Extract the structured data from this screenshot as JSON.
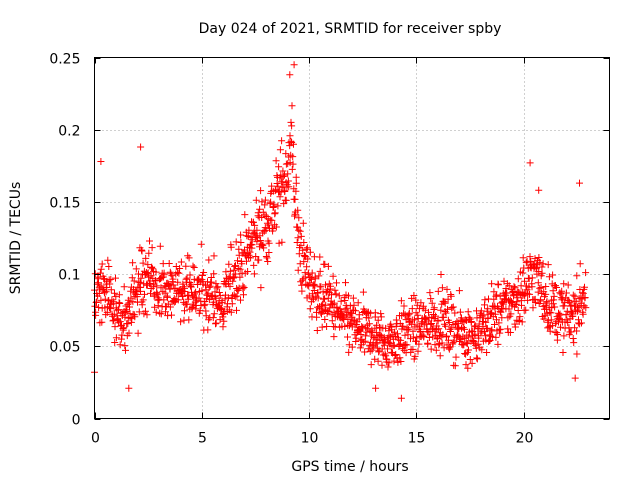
{
  "chart_data": {
    "type": "scatter",
    "title": "Day 024 of 2021, SRMTID for receiver spby",
    "xlabel": "GPS time / hours",
    "ylabel": "SRMTID / TECUs",
    "xlim": [
      0,
      24
    ],
    "ylim": [
      0,
      0.25
    ],
    "xticks": [
      0,
      5,
      10,
      15,
      20
    ],
    "xtick_labels": [
      "0",
      "5",
      "10",
      "15",
      "20"
    ],
    "yticks": [
      0,
      0.05,
      0.1,
      0.15,
      0.2,
      0.25
    ],
    "ytick_labels": [
      "0",
      "0.05",
      "0.1",
      "0.15",
      "0.2",
      "0.25"
    ],
    "grid": true,
    "marker": "+",
    "color": "#ff0000",
    "x_range": [
      0,
      22.9
    ],
    "trend": [
      {
        "x": 0.0,
        "y": 0.085
      },
      {
        "x": 0.5,
        "y": 0.09
      },
      {
        "x": 1.0,
        "y": 0.075
      },
      {
        "x": 1.5,
        "y": 0.065
      },
      {
        "x": 2.0,
        "y": 0.095
      },
      {
        "x": 2.5,
        "y": 0.1
      },
      {
        "x": 3.0,
        "y": 0.09
      },
      {
        "x": 3.5,
        "y": 0.09
      },
      {
        "x": 4.0,
        "y": 0.085
      },
      {
        "x": 4.5,
        "y": 0.09
      },
      {
        "x": 5.0,
        "y": 0.09
      },
      {
        "x": 5.5,
        "y": 0.085
      },
      {
        "x": 6.0,
        "y": 0.075
      },
      {
        "x": 6.5,
        "y": 0.1
      },
      {
        "x": 7.0,
        "y": 0.11
      },
      {
        "x": 7.5,
        "y": 0.125
      },
      {
        "x": 8.0,
        "y": 0.135
      },
      {
        "x": 8.5,
        "y": 0.15
      },
      {
        "x": 9.0,
        "y": 0.175
      },
      {
        "x": 9.2,
        "y": 0.19
      },
      {
        "x": 9.5,
        "y": 0.12
      },
      {
        "x": 10.0,
        "y": 0.095
      },
      {
        "x": 10.5,
        "y": 0.085
      },
      {
        "x": 11.0,
        "y": 0.08
      },
      {
        "x": 11.5,
        "y": 0.07
      },
      {
        "x": 12.0,
        "y": 0.065
      },
      {
        "x": 12.5,
        "y": 0.06
      },
      {
        "x": 13.0,
        "y": 0.058
      },
      {
        "x": 13.5,
        "y": 0.052
      },
      {
        "x": 14.0,
        "y": 0.055
      },
      {
        "x": 14.5,
        "y": 0.06
      },
      {
        "x": 15.0,
        "y": 0.062
      },
      {
        "x": 15.5,
        "y": 0.065
      },
      {
        "x": 16.0,
        "y": 0.07
      },
      {
        "x": 16.5,
        "y": 0.065
      },
      {
        "x": 17.0,
        "y": 0.06
      },
      {
        "x": 17.5,
        "y": 0.058
      },
      {
        "x": 18.0,
        "y": 0.06
      },
      {
        "x": 18.5,
        "y": 0.07
      },
      {
        "x": 19.0,
        "y": 0.075
      },
      {
        "x": 19.5,
        "y": 0.08
      },
      {
        "x": 20.0,
        "y": 0.09
      },
      {
        "x": 20.5,
        "y": 0.1
      },
      {
        "x": 21.0,
        "y": 0.085
      },
      {
        "x": 21.5,
        "y": 0.075
      },
      {
        "x": 22.0,
        "y": 0.07
      },
      {
        "x": 22.5,
        "y": 0.075
      },
      {
        "x": 22.9,
        "y": 0.09
      }
    ],
    "notable_points": [
      {
        "x": 0.3,
        "y": 0.178
      },
      {
        "x": 2.15,
        "y": 0.188
      },
      {
        "x": 1.6,
        "y": 0.021
      },
      {
        "x": 9.3,
        "y": 0.245
      },
      {
        "x": 9.1,
        "y": 0.238
      },
      {
        "x": 13.1,
        "y": 0.021
      },
      {
        "x": 14.3,
        "y": 0.014
      },
      {
        "x": 20.3,
        "y": 0.177
      },
      {
        "x": 20.7,
        "y": 0.158
      },
      {
        "x": 22.6,
        "y": 0.163
      },
      {
        "x": 22.4,
        "y": 0.028
      },
      {
        "x": 0.0,
        "y": 0.032
      }
    ],
    "n_points": 1500,
    "spread": 0.022
  }
}
